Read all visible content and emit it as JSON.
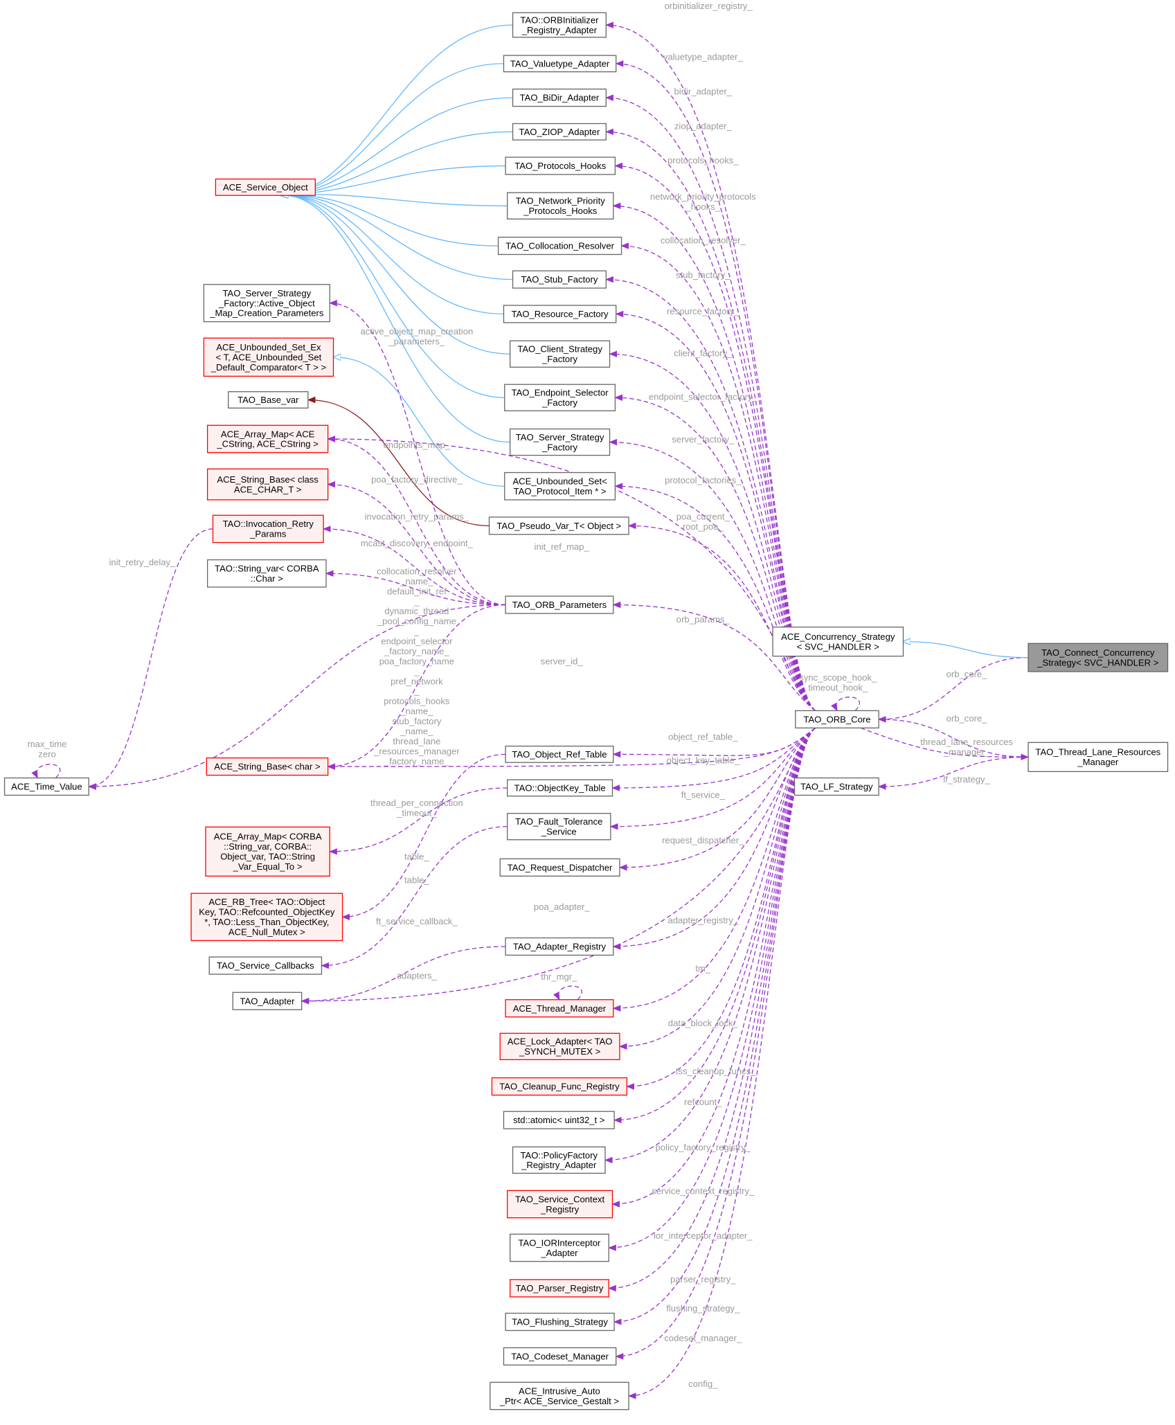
{
  "colors": {
    "member_edge": "#9a32cd",
    "inheritance_edge": "#63b8ff",
    "template_edge": "#8b1a1a",
    "incomplete_border": "#ff0000",
    "incomplete_fill": "#fff0f0",
    "focus_fill": "#999999",
    "label": "#9a9a9a"
  },
  "nodes": {
    "orbinit": {
      "lines": [
        "TAO::ORBInitializer",
        "_Registry_Adapter"
      ]
    },
    "valuetype": {
      "lines": [
        "TAO_Valuetype_Adapter"
      ]
    },
    "bidir": {
      "lines": [
        "TAO_BiDir_Adapter"
      ]
    },
    "ziop": {
      "lines": [
        "TAO_ZIOP_Adapter"
      ]
    },
    "protocols_hooks": {
      "lines": [
        "TAO_Protocols_Hooks"
      ]
    },
    "network_priority": {
      "lines": [
        "TAO_Network_Priority",
        "_Protocols_Hooks"
      ]
    },
    "collocation_resolver": {
      "lines": [
        "TAO_Collocation_Resolver"
      ]
    },
    "stub_factory": {
      "lines": [
        "TAO_Stub_Factory"
      ]
    },
    "resource_factory": {
      "lines": [
        "TAO_Resource_Factory"
      ]
    },
    "client_strategy": {
      "lines": [
        "TAO_Client_Strategy",
        "_Factory"
      ]
    },
    "endpoint_selector": {
      "lines": [
        "TAO_Endpoint_Selector",
        "_Factory"
      ]
    },
    "server_strategy": {
      "lines": [
        "TAO_Server_Strategy",
        "_Factory"
      ]
    },
    "unbounded_set": {
      "lines": [
        "ACE_Unbounded_Set<",
        "TAO_Protocol_Item * >"
      ]
    },
    "pseudo_var": {
      "lines": [
        "TAO_Pseudo_Var_T< Object >"
      ]
    },
    "orb_params": {
      "lines": [
        "TAO_ORB_Parameters"
      ]
    },
    "object_ref_table": {
      "lines": [
        "TAO_Object_Ref_Table"
      ]
    },
    "objectkey_table": {
      "lines": [
        "TAO::ObjectKey_Table"
      ]
    },
    "fault_tolerance": {
      "lines": [
        "TAO_Fault_Tolerance",
        "_Service"
      ]
    },
    "request_dispatcher": {
      "lines": [
        "TAO_Request_Dispatcher"
      ]
    },
    "adapter_registry": {
      "lines": [
        "TAO_Adapter_Registry"
      ]
    },
    "thread_manager": {
      "lines": [
        "ACE_Thread_Manager"
      ],
      "incomplete": true
    },
    "lock_adapter": {
      "lines": [
        "ACE_Lock_Adapter< TAO",
        "_SYNCH_MUTEX >"
      ],
      "incomplete": true
    },
    "cleanup": {
      "lines": [
        "TAO_Cleanup_Func_Registry"
      ],
      "incomplete": true
    },
    "atomic": {
      "lines": [
        "std::atomic< uint32_t >"
      ]
    },
    "policyfactory": {
      "lines": [
        "TAO::PolicyFactory",
        "_Registry_Adapter"
      ]
    },
    "service_context": {
      "lines": [
        "TAO_Service_Context",
        "_Registry"
      ],
      "incomplete": true
    },
    "iorinterceptor": {
      "lines": [
        "TAO_IORInterceptor",
        "_Adapter"
      ]
    },
    "parser_registry": {
      "lines": [
        "TAO_Parser_Registry"
      ],
      "incomplete": true
    },
    "flushing": {
      "lines": [
        "TAO_Flushing_Strategy"
      ]
    },
    "codeset": {
      "lines": [
        "TAO_Codeset_Manager"
      ]
    },
    "intrusive": {
      "lines": [
        "ACE_Intrusive_Auto",
        "_Ptr< ACE_Service_Gestalt >"
      ]
    },
    "service_object": {
      "lines": [
        "ACE_Service_Object"
      ],
      "incomplete": true
    },
    "ssf_params": {
      "lines": [
        "TAO_Server_Strategy",
        "_Factory::Active_Object",
        "_Map_Creation_Parameters"
      ]
    },
    "unbounded_set_ex": {
      "lines": [
        "ACE_Unbounded_Set_Ex",
        "< T, ACE_Unbounded_Set",
        "_Default_Comparator< T > >"
      ],
      "incomplete": true
    },
    "base_var": {
      "lines": [
        "TAO_Base_var"
      ]
    },
    "array_map_cstring": {
      "lines": [
        "ACE_Array_Map< ACE",
        "_CString, ACE_CString >"
      ],
      "incomplete": true
    },
    "string_base_char_t": {
      "lines": [
        "ACE_String_Base< class",
        "ACE_CHAR_T >"
      ],
      "incomplete": true
    },
    "invocation_retry": {
      "lines": [
        "TAO::Invocation_Retry",
        "_Params"
      ],
      "incomplete": true
    },
    "string_var": {
      "lines": [
        "TAO::String_var< CORBA",
        "::Char >"
      ]
    },
    "string_base_char": {
      "lines": [
        "ACE_String_Base< char >"
      ],
      "incomplete": true
    },
    "array_map_corba": {
      "lines": [
        "ACE_Array_Map< CORBA",
        "::String_var, CORBA::",
        "Object_var, TAO::String",
        "_Var_Equal_To >"
      ],
      "incomplete": true
    },
    "rb_tree": {
      "lines": [
        "ACE_RB_Tree< TAO::Object",
        "Key, TAO::Refcounted_ObjectKey",
        "*, TAO::Less_Than_ObjectKey,",
        "ACE_Null_Mutex >"
      ],
      "incomplete": true
    },
    "service_callbacks": {
      "lines": [
        "TAO_Service_Callbacks"
      ]
    },
    "tao_adapter": {
      "lines": [
        "TAO_Adapter"
      ]
    },
    "time_value": {
      "lines": [
        "ACE_Time_Value"
      ]
    },
    "concurrency_strategy": {
      "lines": [
        "ACE_Concurrency_Strategy",
        "< SVC_HANDLER >"
      ]
    },
    "connect_concurrency": {
      "lines": [
        "TAO_Connect_Concurrency",
        "_Strategy< SVC_HANDLER >"
      ],
      "focus": true
    },
    "orb_core": {
      "lines": [
        "TAO_ORB_Core"
      ]
    },
    "thread_lane": {
      "lines": [
        "TAO_Thread_Lane_Resources",
        "_Manager"
      ]
    },
    "lf_strategy": {
      "lines": [
        "TAO_LF_Strategy"
      ]
    }
  },
  "edges": [
    {
      "from": "orb_core",
      "to": "orbinit",
      "kind": "member",
      "label": [
        "orbinitializer_registry_"
      ]
    },
    {
      "from": "orb_core",
      "to": "valuetype",
      "kind": "member",
      "label": [
        "valuetype_adapter_"
      ]
    },
    {
      "from": "orb_core",
      "to": "bidir",
      "kind": "member",
      "label": [
        "bidir_adapter_"
      ]
    },
    {
      "from": "orb_core",
      "to": "ziop",
      "kind": "member",
      "label": [
        "ziop_adapter_"
      ]
    },
    {
      "from": "orb_core",
      "to": "protocols_hooks",
      "kind": "member",
      "label": [
        "protocols_hooks_"
      ]
    },
    {
      "from": "orb_core",
      "to": "network_priority",
      "kind": "member",
      "label": [
        "network_priority_protocols",
        "_hooks_"
      ]
    },
    {
      "from": "orb_core",
      "to": "collocation_resolver",
      "kind": "member",
      "label": [
        "collocation_resolver_"
      ]
    },
    {
      "from": "orb_core",
      "to": "stub_factory",
      "kind": "member",
      "label": [
        "stub_factory_"
      ]
    },
    {
      "from": "orb_core",
      "to": "resource_factory",
      "kind": "member",
      "label": [
        "resource_factory_"
      ]
    },
    {
      "from": "orb_core",
      "to": "client_strategy",
      "kind": "member",
      "label": [
        "client_factory_"
      ]
    },
    {
      "from": "orb_core",
      "to": "endpoint_selector",
      "kind": "member",
      "label": [
        "endpoint_selector_factory_"
      ]
    },
    {
      "from": "orb_core",
      "to": "server_strategy",
      "kind": "member",
      "label": [
        "server_factory_"
      ]
    },
    {
      "from": "orb_core",
      "to": "unbounded_set",
      "kind": "member",
      "label": [
        "protocol_factories_"
      ]
    },
    {
      "from": "orb_core",
      "to": "pseudo_var",
      "kind": "member",
      "label": [
        "poa_current_",
        "root_poa_"
      ]
    },
    {
      "from": "orb_core",
      "to": "array_map_cstring",
      "kind": "member",
      "label": [
        "init_ref_map_"
      ]
    },
    {
      "from": "orb_core",
      "to": "orb_params",
      "kind": "member",
      "label": [
        "orb_params_"
      ]
    },
    {
      "from": "orb_core",
      "to": "string_base_char",
      "kind": "member",
      "label": [
        "server_id_"
      ]
    },
    {
      "from": "orb_core",
      "to": "object_ref_table",
      "kind": "member",
      "label": [
        "object_ref_table_"
      ]
    },
    {
      "from": "orb_core",
      "to": "objectkey_table",
      "kind": "member",
      "label": [
        "object_key_table_"
      ]
    },
    {
      "from": "orb_core",
      "to": "fault_tolerance",
      "kind": "member",
      "label": [
        "ft_service_"
      ]
    },
    {
      "from": "orb_core",
      "to": "request_dispatcher",
      "kind": "member",
      "label": [
        "request_dispatcher_"
      ]
    },
    {
      "from": "orb_core",
      "to": "tao_adapter",
      "kind": "member",
      "label": [
        "poa_adapter_"
      ]
    },
    {
      "from": "orb_core",
      "to": "adapter_registry",
      "kind": "member",
      "label": [
        "adapter_registry_"
      ]
    },
    {
      "from": "orb_core",
      "to": "thread_manager",
      "kind": "member",
      "label": [
        "tm_"
      ]
    },
    {
      "from": "orb_core",
      "to": "lock_adapter",
      "kind": "member",
      "label": [
        "data_block_lock_"
      ]
    },
    {
      "from": "orb_core",
      "to": "cleanup",
      "kind": "member",
      "label": [
        "tss_cleanup_funcs_"
      ]
    },
    {
      "from": "orb_core",
      "to": "atomic",
      "kind": "member",
      "label": [
        "refcount_"
      ]
    },
    {
      "from": "orb_core",
      "to": "policyfactory",
      "kind": "member",
      "label": [
        "policy_factory_registry_"
      ]
    },
    {
      "from": "orb_core",
      "to": "service_context",
      "kind": "member",
      "label": [
        "service_context_registry_"
      ]
    },
    {
      "from": "orb_core",
      "to": "iorinterceptor",
      "kind": "member",
      "label": [
        "ior_interceptor_adapter_"
      ]
    },
    {
      "from": "orb_core",
      "to": "parser_registry",
      "kind": "member",
      "label": [
        "parser_registry_"
      ]
    },
    {
      "from": "orb_core",
      "to": "flushing",
      "kind": "member",
      "label": [
        "flushing_strategy_"
      ]
    },
    {
      "from": "orb_core",
      "to": "codeset",
      "kind": "member",
      "label": [
        "codeset_manager_"
      ]
    },
    {
      "from": "orb_core",
      "to": "intrusive",
      "kind": "member",
      "label": [
        "config_"
      ]
    },
    {
      "from": "orb_core",
      "to": "orb_core",
      "kind": "member",
      "label": [
        "sync_scope_hook_",
        "timeout_hook_"
      ]
    },
    {
      "from": "orb_core",
      "to": "thread_lane",
      "kind": "member",
      "label": [
        "thread_lane_resources",
        "_manager_"
      ]
    },
    {
      "from": "orb_params",
      "to": "ssf_params",
      "kind": "member",
      "label": [
        "active_object_map_creation",
        "_parameters_"
      ]
    },
    {
      "from": "orb_params",
      "to": "array_map_cstring",
      "kind": "member",
      "label": [
        "endpoints_map_"
      ]
    },
    {
      "from": "orb_params",
      "to": "string_base_char_t",
      "kind": "member",
      "label": [
        "poa_factory_directive_"
      ]
    },
    {
      "from": "orb_params",
      "to": "invocation_retry",
      "kind": "member",
      "label": [
        "invocation_retry_params_"
      ]
    },
    {
      "from": "orb_params",
      "to": "string_var",
      "kind": "member",
      "label": [
        "mcast_discovery_endpoint_"
      ]
    },
    {
      "from": "orb_params",
      "to": "string_base_char",
      "kind": "member",
      "label": [
        "collocation_resolver",
        "_name_",
        "default_init_ref",
        "_",
        "dynamic_thread",
        "_pool_config_name",
        "_",
        "endpoint_selector",
        "_factory_name_",
        "poa_factory_name",
        "_",
        "pref_network",
        "_",
        "protocols_hooks",
        "_name_",
        "stub_factory",
        "_name_",
        "thread_lane",
        "_resources_manager",
        "_factory_name_"
      ]
    },
    {
      "from": "orb_params",
      "to": "time_value",
      "kind": "member",
      "label": [
        "thread_per_connection",
        "_timeout_"
      ]
    },
    {
      "from": "invocation_retry",
      "to": "time_value",
      "kind": "member",
      "label": [
        "init_retry_delay_"
      ]
    },
    {
      "from": "time_value",
      "to": "time_value",
      "kind": "member",
      "label": [
        "max_time",
        "zero"
      ]
    },
    {
      "from": "objectkey_table",
      "to": "array_map_corba",
      "kind": "member",
      "label": [
        "table_"
      ]
    },
    {
      "from": "object_ref_table",
      "to": "rb_tree",
      "kind": "member",
      "label": [
        "table_"
      ]
    },
    {
      "from": "fault_tolerance",
      "to": "service_callbacks",
      "kind": "member",
      "label": [
        "ft_service_callback_"
      ]
    },
    {
      "from": "adapter_registry",
      "to": "tao_adapter",
      "kind": "member",
      "label": [
        "adapters_"
      ]
    },
    {
      "from": "thread_manager",
      "to": "thread_manager",
      "kind": "member",
      "label": [
        "thr_mgr_"
      ]
    },
    {
      "from": "thread_lane",
      "to": "orb_core",
      "kind": "member",
      "label": [
        "orb_core_"
      ]
    },
    {
      "from": "thread_lane",
      "to": "lf_strategy",
      "kind": "member",
      "label": [
        "lf_strategy_"
      ]
    },
    {
      "from": "connect_concurrency",
      "to": "orb_core",
      "kind": "member",
      "label": [
        "orb_core_"
      ]
    },
    {
      "from": "connect_concurrency",
      "to": "concurrency_strategy",
      "kind": "inherit",
      "label": []
    },
    {
      "from": "pseudo_var",
      "to": "base_var",
      "kind": "template",
      "label": []
    },
    {
      "from": "unbounded_set",
      "to": "unbounded_set_ex",
      "kind": "inherit",
      "label": []
    },
    {
      "from": "orbinit",
      "to": "service_object",
      "kind": "inherit",
      "label": []
    },
    {
      "from": "valuetype",
      "to": "service_object",
      "kind": "inherit",
      "label": []
    },
    {
      "from": "bidir",
      "to": "service_object",
      "kind": "inherit",
      "label": []
    },
    {
      "from": "ziop",
      "to": "service_object",
      "kind": "inherit",
      "label": []
    },
    {
      "from": "protocols_hooks",
      "to": "service_object",
      "kind": "inherit",
      "label": []
    },
    {
      "from": "network_priority",
      "to": "service_object",
      "kind": "inherit",
      "label": []
    },
    {
      "from": "collocation_resolver",
      "to": "service_object",
      "kind": "inherit",
      "label": []
    },
    {
      "from": "stub_factory",
      "to": "service_object",
      "kind": "inherit",
      "label": []
    },
    {
      "from": "resource_factory",
      "to": "service_object",
      "kind": "inherit",
      "label": []
    },
    {
      "from": "client_strategy",
      "to": "service_object",
      "kind": "inherit",
      "label": []
    },
    {
      "from": "endpoint_selector",
      "to": "service_object",
      "kind": "inherit",
      "label": []
    },
    {
      "from": "server_strategy",
      "to": "service_object",
      "kind": "inherit",
      "label": []
    }
  ]
}
